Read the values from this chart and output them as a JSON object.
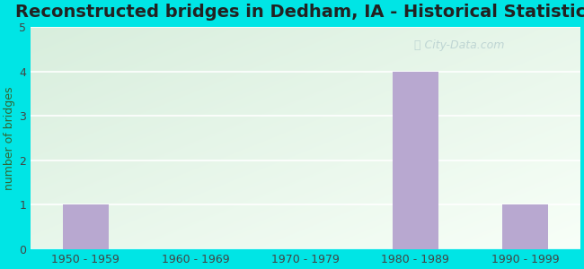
{
  "title": "Reconstructed bridges in Dedham, IA - Historical Statistics",
  "categories": [
    "1950 - 1959",
    "1960 - 1969",
    "1970 - 1979",
    "1980 - 1989",
    "1990 - 1999"
  ],
  "values": [
    1,
    0,
    0,
    4,
    1
  ],
  "bar_color": "#b8a8d0",
  "ylabel": "number of bridges",
  "ylim": [
    0,
    5
  ],
  "yticks": [
    0,
    1,
    2,
    3,
    4,
    5
  ],
  "background_outer": "#00e5e5",
  "bg_top_left": "#d8eedd",
  "bg_bottom_right": "#f5fff5",
  "title_fontsize": 14,
  "axis_label_fontsize": 9,
  "tick_fontsize": 9,
  "watermark": "City-Data.com",
  "watermark_color": "#b8d0d0",
  "grid_color": "#ffffff",
  "label_color": "#336633",
  "tick_color": "#444444"
}
